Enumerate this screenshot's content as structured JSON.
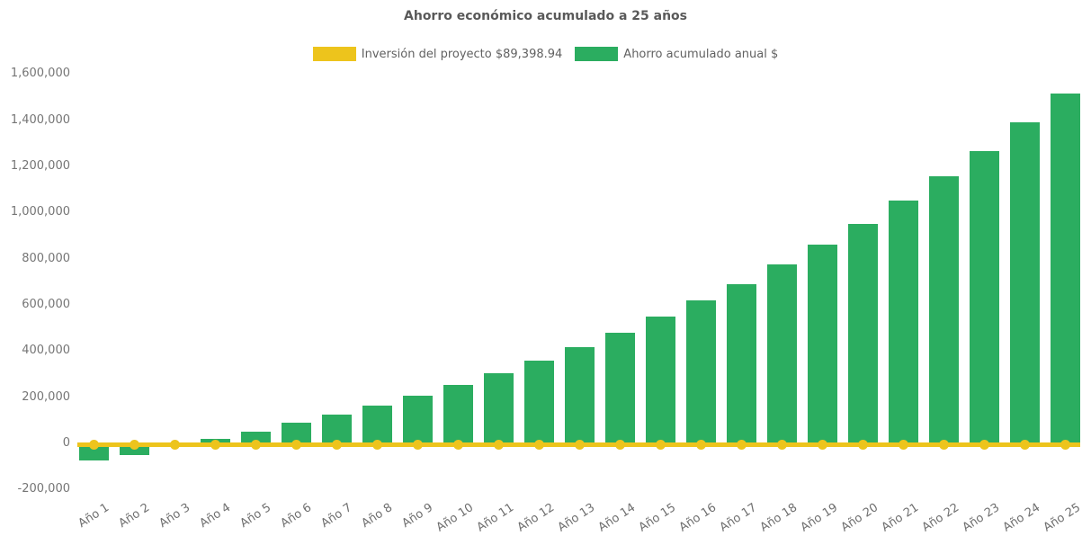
{
  "title": "Ahorro económico acumulado a 25 años",
  "legend": {
    "items": [
      {
        "id": "investment",
        "label": "Inversión del proyecto $89,398.94",
        "color": "#EDC41C"
      },
      {
        "id": "savings",
        "label": "Ahorro acumulado anual $",
        "color": "#2BAD60"
      }
    ]
  },
  "chart_data": {
    "type": "bar",
    "title": "Ahorro económico acumulado a 25 años",
    "categories": [
      "Año 1",
      "Año 2",
      "Año 3",
      "Año 4",
      "Año 5",
      "Año 6",
      "Año 7",
      "Año 8",
      "Año 9",
      "Año 10",
      "Año 11",
      "Año 12",
      "Año 13",
      "Año 14",
      "Año 15",
      "Año 16",
      "Año 17",
      "Año 18",
      "Año 19",
      "Año 20",
      "Año 21",
      "Año 22",
      "Año 23",
      "Año 24",
      "Año 25"
    ],
    "series": [
      {
        "name": "Ahorro acumulado anual $",
        "type": "bar",
        "color": "#2BAD60",
        "values": [
          -75000,
          -50000,
          -15000,
          20000,
          50000,
          90000,
          125000,
          165000,
          205000,
          255000,
          305000,
          360000,
          415000,
          480000,
          550000,
          620000,
          690000,
          775000,
          860000,
          950000,
          1050000,
          1155000,
          1265000,
          1390000,
          1515000
        ]
      },
      {
        "name": "Inversión del proyecto $89,398.94",
        "type": "line",
        "color": "#EDC41C",
        "marker": "circle",
        "constant_value": 89398.94,
        "plotted_at_value": 0
      }
    ],
    "xlabel": "",
    "ylabel": "",
    "ylim": [
      -200000,
      1600000
    ],
    "ytick_step": 200000,
    "grid": false,
    "axis_lines": false,
    "legend_position": "top",
    "x_tick_rotation_deg": -33,
    "background": "#FFFFFF"
  }
}
